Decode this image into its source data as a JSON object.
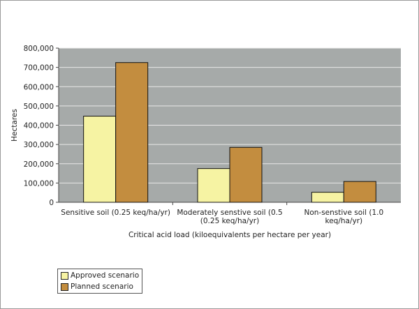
{
  "chart_data": {
    "type": "bar",
    "categories": [
      [
        "Sensitive soil (0.25 keq/ha/yr)"
      ],
      [
        "Moderately senstive soil (0.5",
        "(0.25 keq/ha/yr)"
      ],
      [
        "Non-senstive soil (1.0",
        "keq/ha/yr)"
      ]
    ],
    "series": [
      {
        "name": "Approved scenario",
        "color": "#f6f3a3",
        "values": [
          447000,
          175000,
          52000
        ]
      },
      {
        "name": "Planned scenario",
        "color": "#c38d3f",
        "values": [
          725000,
          285000,
          108000
        ]
      }
    ],
    "xlabel": "Critical acid load (kiloequivalents per hectare per year)",
    "ylabel": "Hectares",
    "ylim": [
      0,
      800000
    ],
    "yticks": [
      "0",
      "100,000",
      "200,000",
      "300,000",
      "400,000",
      "500,000",
      "600,000",
      "700,000",
      "800,000"
    ],
    "plot_background": "#a6aaa9",
    "gridlines": true,
    "legend_position": "bottom-left"
  }
}
